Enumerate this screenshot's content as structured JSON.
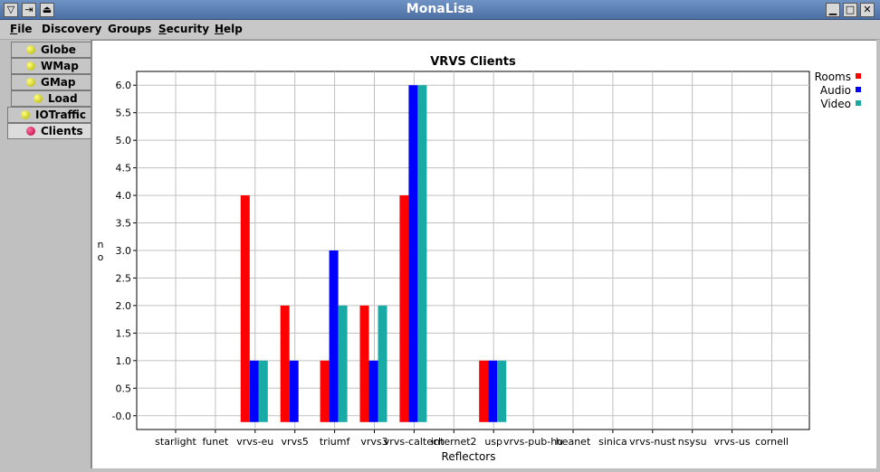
{
  "window": {
    "title": "MonaLisa"
  },
  "menu": [
    {
      "label": "File",
      "underline": "F",
      "rest": "ile"
    },
    {
      "label": "Discovery",
      "underline": "",
      "rest": "Discovery"
    },
    {
      "label": "Groups",
      "underline": "",
      "rest": "Groups"
    },
    {
      "label": "Security",
      "underline": "S",
      "rest": "ecurity"
    },
    {
      "label": "Help",
      "underline": "H",
      "rest": "elp"
    }
  ],
  "tabs": [
    {
      "label": "Globe",
      "dot_color": "#d9d900"
    },
    {
      "label": "WMap",
      "dot_color": "#d9d900"
    },
    {
      "label": "GMap",
      "dot_color": "#d9d900"
    },
    {
      "label": "Load",
      "dot_color": "#d9d900"
    },
    {
      "label": "IOTraffic",
      "dot_color": "#d9d900"
    },
    {
      "label": "Clients",
      "dot_color": "#c8004a",
      "active": true
    }
  ],
  "chart_data": {
    "type": "bar",
    "title": "VRVS Clients",
    "xlabel": "Reflectors",
    "ylabel": "no",
    "ylim": [
      -0.25,
      6.25
    ],
    "yticks": [
      "-0.0",
      "0.5",
      "1.0",
      "1.5",
      "2.0",
      "2.5",
      "3.0",
      "3.5",
      "4.0",
      "4.5",
      "5.0",
      "5.5",
      "6.0"
    ],
    "grid": true,
    "legend_position": "top-right",
    "categories": [
      "starlight",
      "funet",
      "vrvs-eu",
      "vrvs5",
      "triumf",
      "vrvs3",
      "vrvs-caltech",
      "internet2",
      "usp",
      "vrvs-pub-hu",
      "heanet",
      "sinica",
      "vrvs-nust",
      "nsysu",
      "vrvs-us",
      "cornell"
    ],
    "series": [
      {
        "name": "Rooms",
        "color": "#ff0000",
        "values": [
          0,
          0,
          4,
          2,
          1,
          2,
          4,
          0,
          1,
          0,
          0,
          0,
          0,
          0,
          0,
          0
        ]
      },
      {
        "name": "Audio",
        "color": "#0000ff",
        "values": [
          0,
          0,
          1,
          1,
          3,
          1,
          6,
          0,
          1,
          0,
          0,
          0,
          0,
          0,
          0,
          0
        ]
      },
      {
        "name": "Video",
        "color": "#1aaaa6",
        "values": [
          0,
          0,
          1,
          0,
          2,
          2,
          6,
          0,
          1,
          0,
          0,
          0,
          0,
          0,
          0,
          0
        ]
      }
    ]
  }
}
